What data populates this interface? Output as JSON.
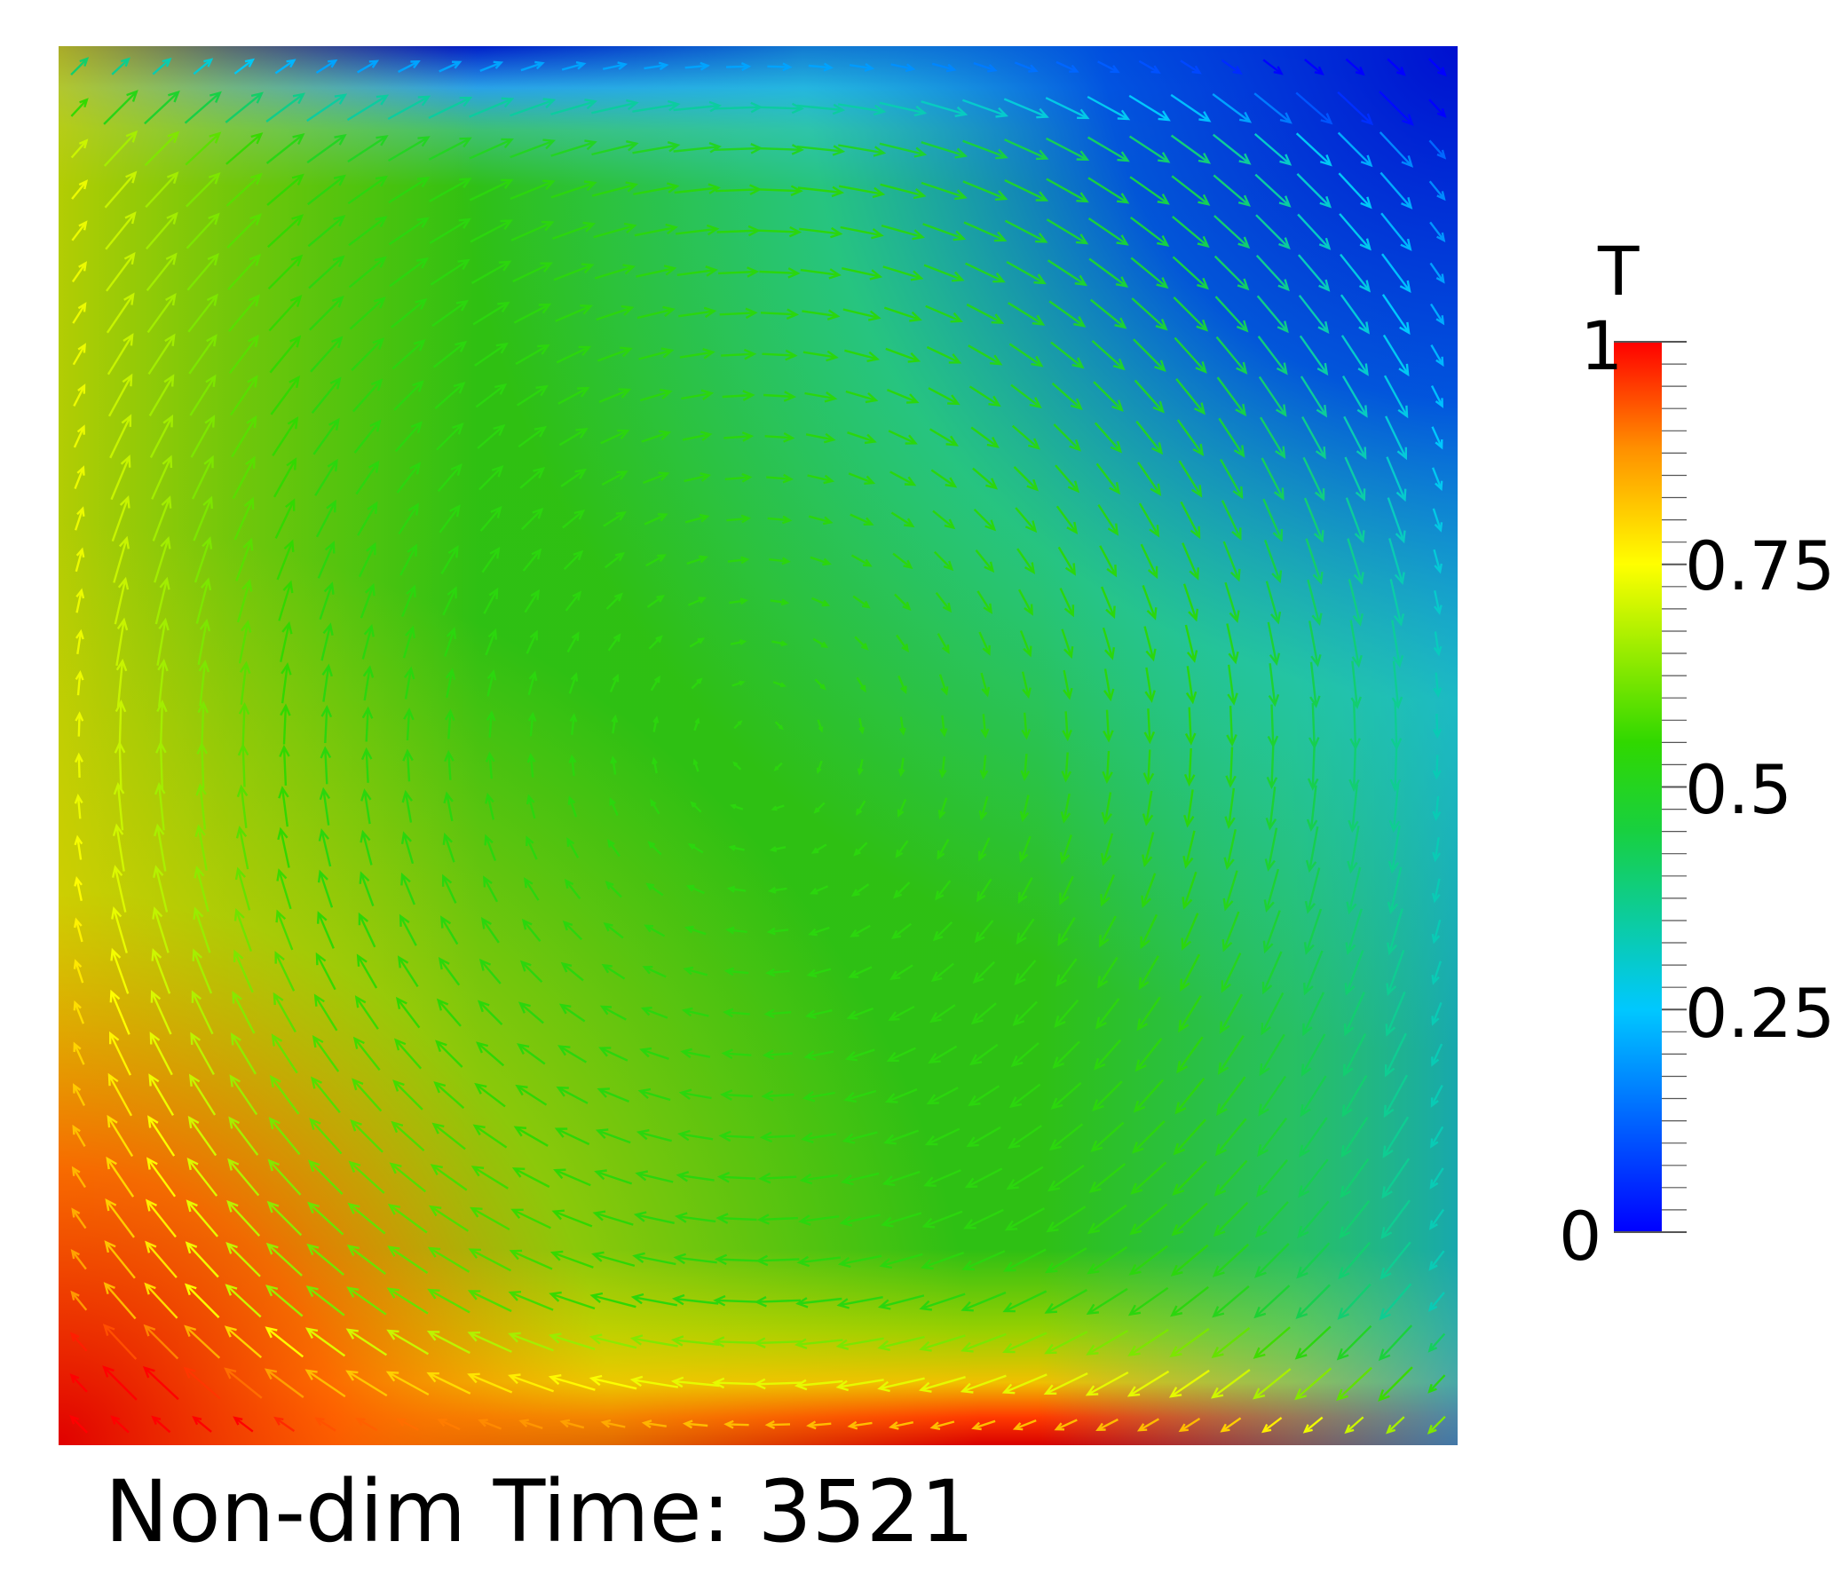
{
  "caption": {
    "label": "Non-dim Time:",
    "value": "3521"
  },
  "colorbar": {
    "title": "T",
    "min_label": "0",
    "max_label": "1",
    "tick_labels": [
      "0.25",
      "0.5",
      "0.75"
    ],
    "ticks": [
      0.25,
      0.5,
      0.75
    ],
    "range": [
      0,
      1
    ],
    "colormap": [
      "#0000ff",
      "#00c8ff",
      "#2ccb2c",
      "#ffff00",
      "#ff9000",
      "#ff0000"
    ]
  },
  "field": {
    "quantity": "T",
    "vectors": "velocity",
    "flow_direction": "clockwise",
    "hot_wall": "bottom",
    "cold_wall": "top"
  }
}
